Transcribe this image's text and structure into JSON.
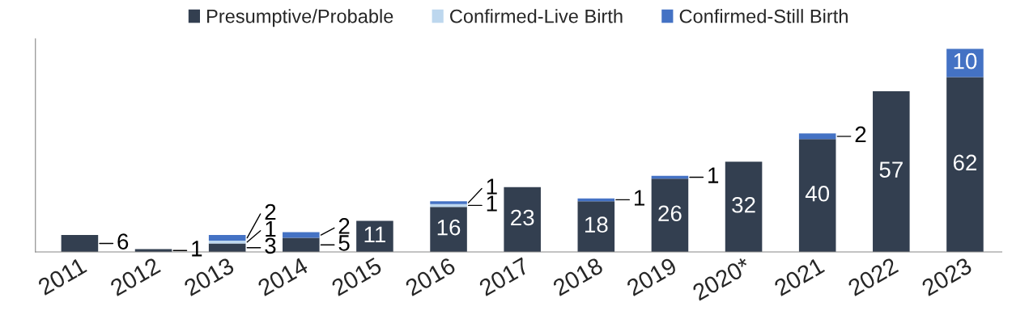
{
  "chart_data": {
    "type": "bar",
    "stacked": true,
    "legend": "top",
    "categories": [
      "2011",
      "2012",
      "2013",
      "2014",
      "2015",
      "2016",
      "2017",
      "2018",
      "2019",
      "2020*",
      "2021",
      "2022",
      "2023"
    ],
    "series": [
      {
        "name": "Presumptive/Probable",
        "color": "#333f50",
        "values": [
          6,
          1,
          3,
          5,
          11,
          16,
          23,
          18,
          26,
          32,
          40,
          57,
          62
        ],
        "value_labels": [
          "6",
          "1",
          "3",
          "5",
          "11",
          "16",
          "23",
          "18",
          "26",
          "32",
          "40",
          "57",
          "62"
        ]
      },
      {
        "name": "Confirmed-Live Birth",
        "color": "#bdd7ee",
        "values": [
          0,
          0,
          1,
          0,
          0,
          1,
          0,
          0,
          0,
          0,
          0,
          0,
          0
        ],
        "value_labels": [
          null,
          null,
          "1",
          null,
          null,
          "1",
          null,
          null,
          null,
          null,
          null,
          null,
          null
        ]
      },
      {
        "name": "Confirmed-Still Birth",
        "color": "#4472c4",
        "values": [
          0,
          0,
          2,
          2,
          0,
          1,
          0,
          1,
          1,
          0,
          2,
          0,
          10
        ],
        "value_labels": [
          null,
          null,
          "2",
          "2",
          null,
          "1",
          null,
          "1",
          "1",
          null,
          "2",
          null,
          "10"
        ]
      }
    ]
  }
}
